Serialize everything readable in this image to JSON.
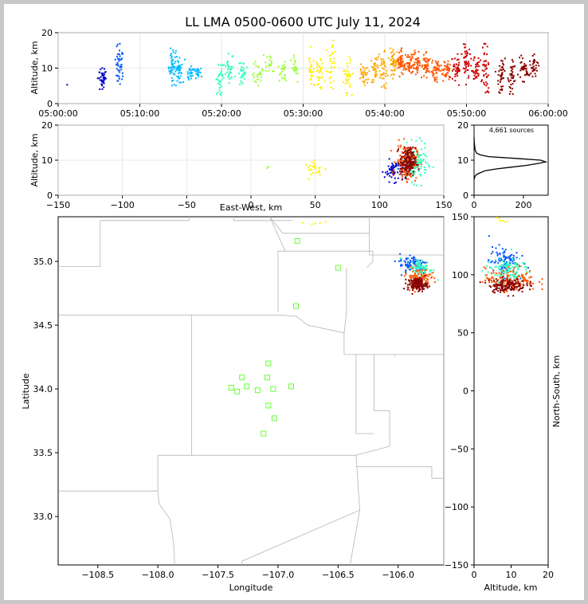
{
  "title": "LL LMA 0500-0600 UTC July 11, 2024",
  "colors": {
    "time_ramp": [
      "#0000cc",
      "#0055ff",
      "#00bbff",
      "#33ffbb",
      "#99ff33",
      "#ffee00",
      "#ffaa00",
      "#ff5500",
      "#cc0000",
      "#880000"
    ],
    "station_marker": "#66ff33",
    "county_lines": "#b5b5b5",
    "histogram": "#000000"
  },
  "chart_data": [
    {
      "type": "scatter",
      "name": "altitude-time",
      "xlabel": "",
      "ylabel": "Altitude, km",
      "xlim": [
        "05:00:00",
        "06:00:00"
      ],
      "ylim": [
        0,
        20
      ],
      "x_ticks": [
        "05:00:00",
        "05:10:00",
        "05:20:00",
        "05:30:00",
        "05:40:00",
        "05:50:00",
        "06:00:00"
      ],
      "y_ticks": [
        "0",
        "10",
        "20"
      ],
      "clusters": [
        {
          "t": 5.5,
          "ymin": 4,
          "ymax": 11,
          "n": 40
        },
        {
          "t": 7.5,
          "ymin": 5,
          "ymax": 17,
          "n": 45
        },
        {
          "t": 14.0,
          "ymin": 5,
          "ymax": 16,
          "n": 45
        },
        {
          "t": 14.8,
          "ymin": 5,
          "ymax": 13,
          "n": 40
        },
        {
          "t": 16.2,
          "ymin": 6,
          "ymax": 11,
          "n": 25
        },
        {
          "t": 17.0,
          "ymin": 7,
          "ymax": 11,
          "n": 20
        },
        {
          "t": 19.8,
          "ymin": 2,
          "ymax": 12,
          "n": 35
        },
        {
          "t": 21.0,
          "ymin": 5,
          "ymax": 15,
          "n": 30
        },
        {
          "t": 22.5,
          "ymin": 5,
          "ymax": 13,
          "n": 30
        },
        {
          "t": 24.5,
          "ymin": 5,
          "ymax": 12,
          "n": 25
        },
        {
          "t": 25.8,
          "ymin": 8,
          "ymax": 14,
          "n": 20
        },
        {
          "t": 27.5,
          "ymin": 6,
          "ymax": 12,
          "n": 22
        },
        {
          "t": 29.0,
          "ymin": 6,
          "ymax": 14,
          "n": 22
        },
        {
          "t": 31.0,
          "ymin": 4,
          "ymax": 16,
          "n": 30
        },
        {
          "t": 32.0,
          "ymin": 3,
          "ymax": 13,
          "n": 30
        },
        {
          "t": 33.5,
          "ymin": 4,
          "ymax": 18,
          "n": 30
        },
        {
          "t": 35.5,
          "ymin": 2,
          "ymax": 14,
          "n": 35
        },
        {
          "t": 37.5,
          "ymin": 5,
          "ymax": 12,
          "n": 35
        },
        {
          "t": 38.8,
          "ymin": 6,
          "ymax": 13,
          "n": 35
        },
        {
          "t": 39.8,
          "ymin": 4,
          "ymax": 15,
          "n": 40
        },
        {
          "t": 41.0,
          "ymin": 7,
          "ymax": 16,
          "n": 45
        },
        {
          "t": 42.0,
          "ymin": 7,
          "ymax": 16,
          "n": 45
        },
        {
          "t": 43.0,
          "ymin": 8,
          "ymax": 14,
          "n": 45
        },
        {
          "t": 44.0,
          "ymin": 8,
          "ymax": 15,
          "n": 40
        },
        {
          "t": 45.0,
          "ymin": 7,
          "ymax": 15,
          "n": 40
        },
        {
          "t": 46.2,
          "ymin": 6,
          "ymax": 13,
          "n": 40
        },
        {
          "t": 47.5,
          "ymin": 6,
          "ymax": 13,
          "n": 40
        },
        {
          "t": 48.8,
          "ymin": 5,
          "ymax": 14,
          "n": 40
        },
        {
          "t": 50.0,
          "ymin": 5,
          "ymax": 17,
          "n": 45
        },
        {
          "t": 51.2,
          "ymin": 6,
          "ymax": 14,
          "n": 35
        },
        {
          "t": 52.3,
          "ymin": 3,
          "ymax": 17,
          "n": 40
        },
        {
          "t": 54.3,
          "ymin": 3,
          "ymax": 14,
          "n": 40
        },
        {
          "t": 55.5,
          "ymin": 2,
          "ymax": 13,
          "n": 35
        },
        {
          "t": 57.0,
          "ymin": 6,
          "ymax": 14,
          "n": 35
        },
        {
          "t": 58.2,
          "ymin": 7,
          "ymax": 14,
          "n": 35
        }
      ]
    },
    {
      "type": "scatter",
      "name": "altitude-eastwest",
      "xlabel": "East-West, km",
      "ylabel": "Altitude, km",
      "xlim": [
        -150,
        150
      ],
      "ylim": [
        0,
        20
      ],
      "x_ticks": [
        "−150",
        "−100",
        "−50",
        "0",
        "50",
        "100",
        "150"
      ],
      "y_ticks": [
        "0",
        "10",
        "20"
      ],
      "clusters": [
        {
          "x": 13,
          "y": 7.8,
          "n": 2,
          "color": 4
        },
        {
          "x": 50,
          "y": 7.5,
          "sx": 4,
          "sy": 1,
          "n": 25,
          "color": 5
        },
        {
          "x": 112,
          "y": 7,
          "sx": 4,
          "sy": 1.5,
          "n": 70,
          "color": 0
        },
        {
          "x": 127,
          "y": 9,
          "sx": 5,
          "sy": 2.5,
          "n": 160,
          "color": 3
        },
        {
          "x": 121,
          "y": 9.5,
          "sx": 4,
          "sy": 2.5,
          "n": 140,
          "color": 7
        },
        {
          "x": 122,
          "y": 9.5,
          "sx": 3,
          "sy": 2,
          "n": 160,
          "color": 9
        }
      ]
    },
    {
      "type": "histogram",
      "name": "source-count",
      "annotation": "4,661 sources",
      "xlim": [
        0,
        300
      ],
      "ylim": [
        0,
        20
      ],
      "x_ticks": [
        "0",
        "200"
      ],
      "y_ticks": [
        "0",
        "10",
        "20"
      ],
      "profile": [
        {
          "alt": 4.5,
          "count": 0
        },
        {
          "alt": 5.0,
          "count": 2
        },
        {
          "alt": 5.5,
          "count": 5
        },
        {
          "alt": 6.0,
          "count": 12
        },
        {
          "alt": 7.0,
          "count": 45
        },
        {
          "alt": 7.5,
          "count": 90
        },
        {
          "alt": 8.0,
          "count": 150
        },
        {
          "alt": 8.5,
          "count": 210
        },
        {
          "alt": 9.0,
          "count": 255
        },
        {
          "alt": 9.5,
          "count": 290
        },
        {
          "alt": 10.0,
          "count": 270
        },
        {
          "alt": 10.5,
          "count": 170
        },
        {
          "alt": 11.0,
          "count": 60
        },
        {
          "alt": 11.5,
          "count": 25
        },
        {
          "alt": 12.0,
          "count": 10
        },
        {
          "alt": 13.0,
          "count": 4
        },
        {
          "alt": 15.0,
          "count": 1
        },
        {
          "alt": 16.5,
          "count": 0
        }
      ]
    },
    {
      "type": "scatter",
      "name": "plan-view",
      "xlabel": "Longitude",
      "ylabel": "Latitude",
      "xlim": [
        -108.83,
        -105.62
      ],
      "ylim": [
        32.62,
        35.35
      ],
      "x_ticks": [
        "−108.5",
        "−108.0",
        "−107.5",
        "−107.0",
        "−106.5",
        "−106.0"
      ],
      "y_ticks": [
        "33.0",
        "33.5",
        "34.0",
        "34.5",
        "35.0"
      ],
      "stations": [
        {
          "lon": -106.84,
          "lat": 35.16
        },
        {
          "lon": -106.5,
          "lat": 34.95
        },
        {
          "lon": -106.85,
          "lat": 34.65
        },
        {
          "lon": -107.08,
          "lat": 34.2
        },
        {
          "lon": -107.3,
          "lat": 34.09
        },
        {
          "lon": -107.09,
          "lat": 34.09
        },
        {
          "lon": -107.39,
          "lat": 34.01
        },
        {
          "lon": -107.26,
          "lat": 34.02
        },
        {
          "lon": -107.34,
          "lat": 33.98
        },
        {
          "lon": -107.17,
          "lat": 33.99
        },
        {
          "lon": -107.04,
          "lat": 34.0
        },
        {
          "lon": -106.89,
          "lat": 34.02
        },
        {
          "lon": -107.08,
          "lat": 33.87
        },
        {
          "lon": -107.03,
          "lat": 33.77
        },
        {
          "lon": -107.12,
          "lat": 33.65
        }
      ],
      "clusters": [
        {
          "lon": -106.7,
          "lat": 35.32,
          "sx": 0.05,
          "sy": 0.03,
          "n": 6,
          "color": 5
        },
        {
          "lon": -105.87,
          "lat": 34.98,
          "sx": 0.06,
          "sy": 0.04,
          "n": 90,
          "color": 1
        },
        {
          "lon": -105.81,
          "lat": 34.94,
          "sx": 0.05,
          "sy": 0.04,
          "n": 90,
          "color": 3
        },
        {
          "lon": -105.83,
          "lat": 34.87,
          "sx": 0.05,
          "sy": 0.04,
          "n": 110,
          "color": 7
        },
        {
          "lon": -105.84,
          "lat": 34.82,
          "sx": 0.04,
          "sy": 0.025,
          "n": 140,
          "color": 9
        }
      ]
    },
    {
      "type": "scatter",
      "name": "northsouth-altitude",
      "xlabel": "Altitude, km",
      "ylabel": "North-South, km",
      "xlim": [
        0,
        20
      ],
      "ylim": [
        -150,
        150
      ],
      "x_ticks": [
        "0",
        "10",
        "20"
      ],
      "y_ticks": [
        "−150",
        "−100",
        "−50",
        "0",
        "50",
        "100",
        "150"
      ],
      "clusters": [
        {
          "x": 7,
          "y": 147,
          "sx": 1,
          "sy": 1.5,
          "n": 6,
          "color": 5
        },
        {
          "x": 8,
          "y": 112,
          "sx": 2,
          "sy": 6,
          "n": 90,
          "color": 1
        },
        {
          "x": 9,
          "y": 104,
          "sx": 3,
          "sy": 5,
          "n": 110,
          "color": 3
        },
        {
          "x": 10,
          "y": 96,
          "sx": 3.5,
          "sy": 5,
          "n": 130,
          "color": 7
        },
        {
          "x": 9,
          "y": 91,
          "sx": 2.5,
          "sy": 3,
          "n": 150,
          "color": 9
        }
      ]
    }
  ]
}
